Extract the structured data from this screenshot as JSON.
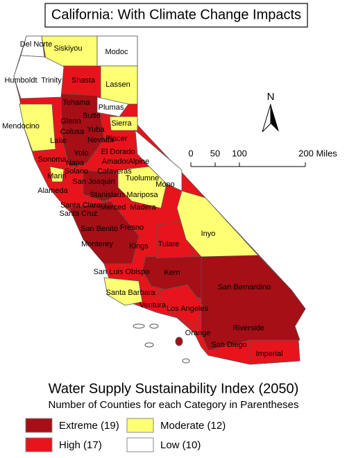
{
  "title": "California: With Climate Change Impacts",
  "map": {
    "counties": [
      "Del Norte",
      "Siskiyou",
      "Modoc",
      "Humboldt",
      "Trinity",
      "Shasta",
      "Lassen",
      "Tehama",
      "Plumas",
      "Butte",
      "Glenn",
      "Sierra",
      "Yuba",
      "Mendocino",
      "Colusa",
      "Nevada",
      "Lake",
      "Placer",
      "Yolo",
      "El Dorado",
      "Napa",
      "Amador",
      "Alpine",
      "Sonoma",
      "Solano",
      "Calaveras",
      "Marin",
      "San Joaquin",
      "Tuolumne",
      "Mono",
      "Alameda",
      "Stanislaus",
      "Mariposa",
      "Santa Clara",
      "Merced",
      "Madera",
      "Santa Cruz",
      "Fresno",
      "San Benito",
      "Inyo",
      "Monterey",
      "Kings",
      "Tulare",
      "San Luis Obispo",
      "Kern",
      "San Bernardino",
      "Santa Barbara",
      "Ventura",
      "Los Angeles",
      "Riverside",
      "Orange",
      "San Diego",
      "Imperial"
    ],
    "north_label": "N",
    "scale_labels": [
      "0",
      "50",
      "100",
      "200 Miles"
    ]
  },
  "legend": {
    "title": "Water Supply Sustainability Index (2050)",
    "subtitle": "Number of Counties for each Category in Parentheses",
    "items": [
      {
        "label": "Extreme (19)",
        "color": "#a50f15"
      },
      {
        "label": "Moderate (12)",
        "color": "#ffff73"
      },
      {
        "label": "High (17)",
        "color": "#e8141c"
      },
      {
        "label": "Low (10)",
        "color": "#ffffff"
      }
    ]
  }
}
